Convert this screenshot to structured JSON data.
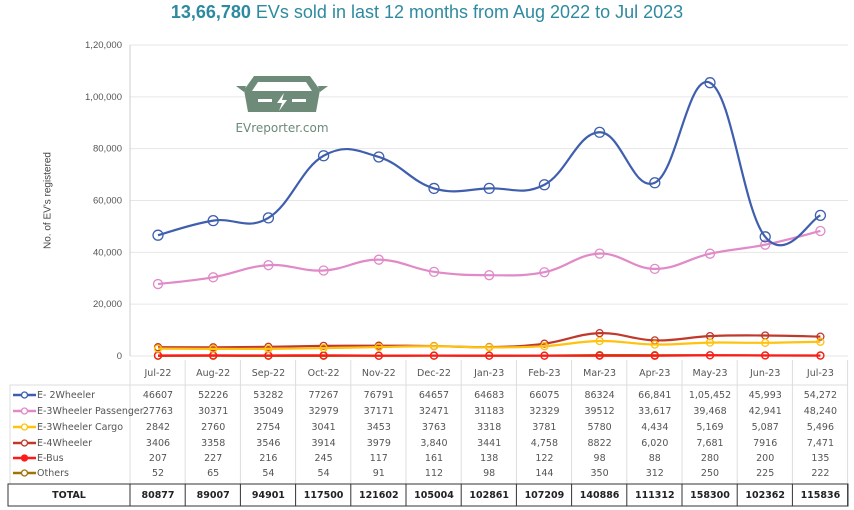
{
  "title": {
    "bold": "13,66,780",
    "rest": " EVs sold in last 12 months from Aug 2022 to Jul 2023"
  },
  "logo": {
    "text": "EVreporter.com"
  },
  "chart_data": {
    "type": "line",
    "title": "13,66,780 EVs sold in last 12 months from Aug 2022 to Jul 2023",
    "xlabel": "",
    "ylabel": "No. of EV's registered",
    "ylim": [
      0,
      120000
    ],
    "yticks": [
      "0",
      "20,000",
      "40,000",
      "60,000",
      "80,000",
      "1,00,000",
      "1,20,000"
    ],
    "ytick_values": [
      0,
      20000,
      40000,
      60000,
      80000,
      100000,
      120000
    ],
    "grid": true,
    "legend": "table-bottom",
    "categories": [
      "Jul-22",
      "Aug-22",
      "Sep-22",
      "Oct-22",
      "Nov-22",
      "Dec-22",
      "Jan-23",
      "Feb-23",
      "Mar-23",
      "Apr-23",
      "May-23",
      "Jun-23",
      "Jul-23"
    ],
    "series": [
      {
        "name": "E- 2Wheeler",
        "color": "#3f5fae",
        "values": [
          46607,
          52226,
          53282,
          77267,
          76791,
          64657,
          64683,
          66075,
          86324,
          66841,
          105452,
          45993,
          54272
        ],
        "labels": [
          "46607",
          "52226",
          "53282",
          "77267",
          "76791",
          "64657",
          "64683",
          "66075",
          "86324",
          "66,841",
          "1,05,452",
          "45,993",
          "54,272"
        ]
      },
      {
        "name": "E-3Wheeler Passenger",
        "color": "#e08ac8",
        "values": [
          27763,
          30371,
          35049,
          32979,
          37171,
          32471,
          31183,
          32329,
          39512,
          33617,
          39468,
          42941,
          48240
        ],
        "labels": [
          "27763",
          "30371",
          "35049",
          "32979",
          "37171",
          "32471",
          "31183",
          "32329",
          "39512",
          "33,617",
          "39,468",
          "42,941",
          "48,240"
        ]
      },
      {
        "name": "E-3Wheeler Cargo",
        "color": "#ffc20e",
        "values": [
          2842,
          2760,
          2754,
          3041,
          3453,
          3763,
          3318,
          3781,
          5780,
          4434,
          5169,
          5087,
          5496
        ],
        "labels": [
          "2842",
          "2760",
          "2754",
          "3041",
          "3453",
          "3763",
          "3318",
          "3781",
          "5780",
          "4,434",
          "5,169",
          "5,087",
          "5,496"
        ]
      },
      {
        "name": "E-4Wheeler",
        "color": "#c0392b",
        "values": [
          3406,
          3358,
          3546,
          3914,
          3979,
          3840,
          3441,
          4758,
          8822,
          6020,
          7681,
          7916,
          7471
        ],
        "labels": [
          "3406",
          "3358",
          "3546",
          "3914",
          "3979",
          "3,840",
          "3441",
          "4,758",
          "8822",
          "6,020",
          "7,681",
          "7916",
          "7,471"
        ]
      },
      {
        "name": "E-Bus",
        "color": "#ff1a1a",
        "values": [
          207,
          227,
          216,
          245,
          117,
          161,
          138,
          122,
          98,
          88,
          280,
          200,
          135
        ],
        "labels": [
          "207",
          "227",
          "216",
          "245",
          "117",
          "161",
          "138",
          "122",
          "98",
          "88",
          "280",
          "200",
          "135"
        ]
      },
      {
        "name": "Others",
        "color": "#a0720a",
        "values": [
          52,
          65,
          54,
          54,
          91,
          112,
          98,
          144,
          350,
          312,
          250,
          225,
          222
        ],
        "labels": [
          "52",
          "65",
          "54",
          "54",
          "91",
          "112",
          "98",
          "144",
          "350",
          "312",
          "250",
          "225",
          "222"
        ]
      }
    ],
    "total_label": "TOTAL",
    "totals": [
      "80877",
      "89007",
      "94901",
      "117500",
      "121602",
      "105004",
      "102861",
      "107209",
      "140886",
      "111312",
      "158300",
      "102362",
      "115836"
    ]
  }
}
